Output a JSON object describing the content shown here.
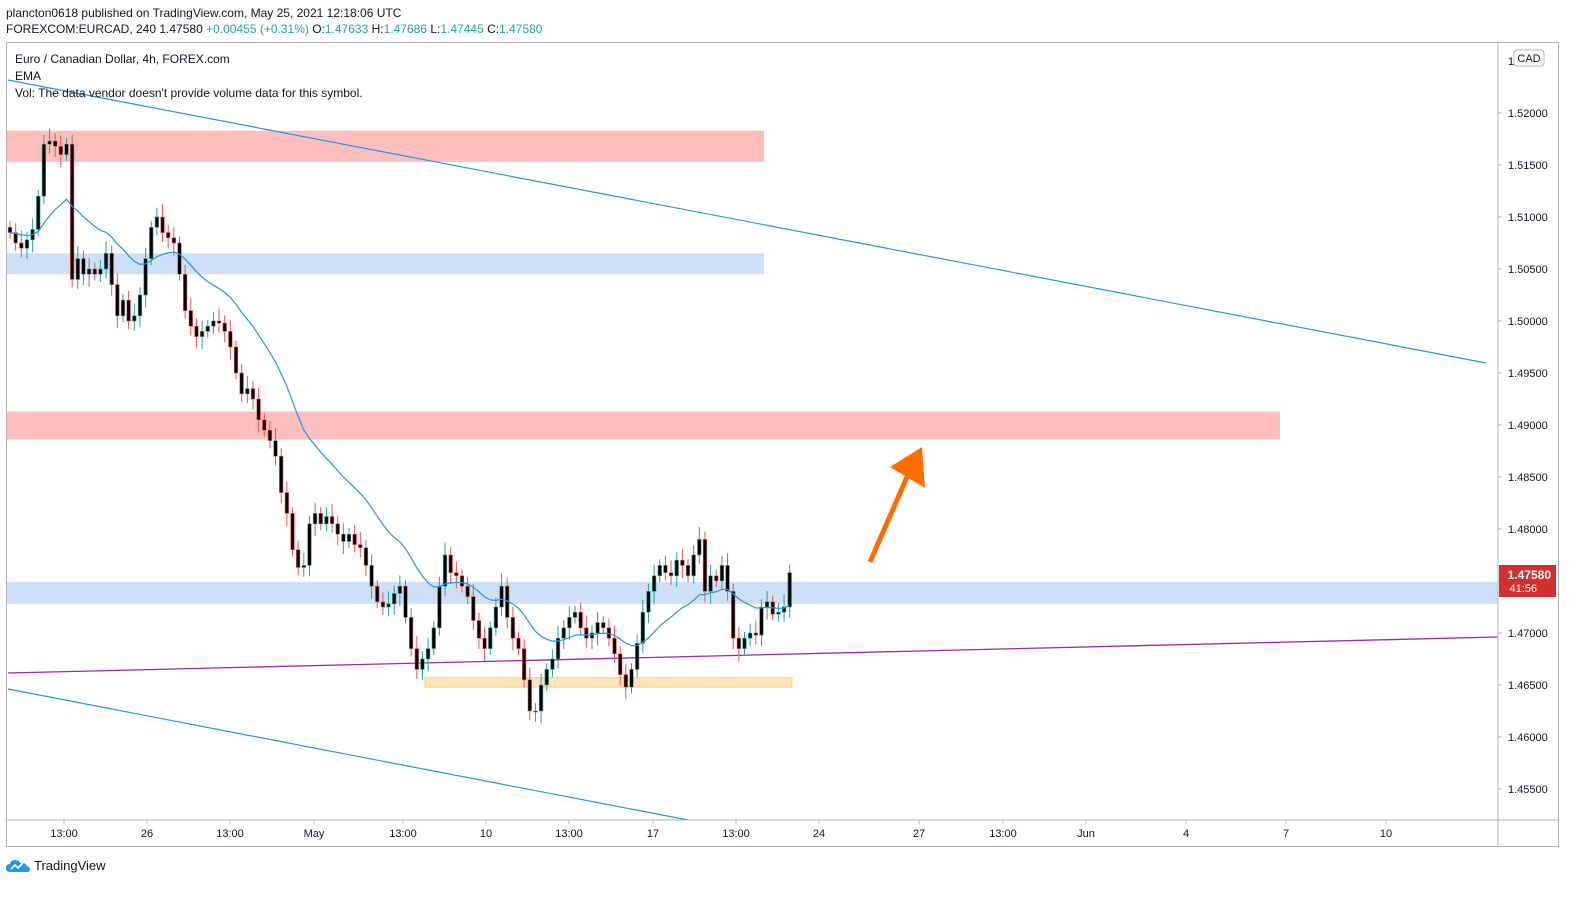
{
  "header": {
    "publisher_line": "plancton0618 published on TradingView.com, May 25, 2021 12:18:06 UTC",
    "symbol": "FOREXCOM:EURCAD, 240",
    "price": "1.47580",
    "change": "+0.00455 (+0.31%)",
    "o_label": "O:",
    "o_value": "1.47633",
    "h_label": "H:",
    "h_value": "1.47686",
    "l_label": "L:",
    "l_value": "1.47445",
    "c_label": "C:",
    "c_value": "1.47580"
  },
  "legend": {
    "title": "Euro / Canadian Dollar, 4h, FOREX.com",
    "ema": "EMA",
    "vol": "Vol: The data vendor doesn't provide volume data for this symbol."
  },
  "price_axis": {
    "currency": "CAD",
    "top_label": "1",
    "current_price": "1.47580",
    "countdown": "41:56"
  },
  "brand": {
    "name": "TradingView"
  },
  "colors": {
    "up": "#26a69a",
    "down": "#ef5350",
    "candle_body": "#000000",
    "ema": "#2196f3",
    "trendline": "#2196f3",
    "support_line": "#9c27b0",
    "supply_zone": "#ffb3b3",
    "demand_zone": "#c6d9f7",
    "base_zone": "#ffe0b2",
    "arrow": "#ff6d00"
  },
  "chart_data": {
    "type": "candlestick",
    "symbol": "FOREXCOM:EURCAD",
    "timeframe": "4h",
    "y_axis": {
      "ticks": [
        "1.52000",
        "1.51500",
        "1.51000",
        "1.50500",
        "1.50000",
        "1.49500",
        "1.49000",
        "1.48500",
        "1.48000",
        "1.47500",
        "1.47000",
        "1.46500",
        "1.46000",
        "1.45500"
      ],
      "range": [
        1.4525,
        1.5265
      ]
    },
    "x_axis": {
      "ticks": [
        "13:00",
        "26",
        "13:00",
        "May",
        "13:00",
        "10",
        "13:00",
        "17",
        "13:00",
        "24",
        "27",
        "13:00",
        "Jun",
        "4",
        "7",
        "10"
      ]
    },
    "zones": [
      {
        "kind": "supply",
        "from": 1.5153,
        "to": 1.5183
      },
      {
        "kind": "demand",
        "from": 1.5045,
        "to": 1.5065
      },
      {
        "kind": "supply",
        "from": 1.4886,
        "to": 1.4913
      },
      {
        "kind": "demand",
        "from": 1.4728,
        "to": 1.4749
      },
      {
        "kind": "base",
        "from": 1.4648,
        "to": 1.4657
      }
    ],
    "candles_close": [
      1.5085,
      1.5075,
      1.507,
      1.5078,
      1.5088,
      1.512,
      1.517,
      1.5173,
      1.5168,
      1.516,
      1.517,
      1.504,
      1.506,
      1.5045,
      1.505,
      1.5045,
      1.505,
      1.5065,
      1.5035,
      1.5005,
      1.502,
      1.5,
      1.5005,
      1.5025,
      1.506,
      1.509,
      1.51,
      1.5085,
      1.508,
      1.5075,
      1.5045,
      1.501,
      1.4995,
      1.4985,
      1.499,
      1.4995,
      1.5,
      1.4998,
      1.499,
      1.4975,
      1.495,
      1.493,
      1.4935,
      1.4925,
      1.4905,
      1.4895,
      1.4885,
      1.487,
      1.4835,
      1.4815,
      1.478,
      1.4763,
      1.4765,
      1.4805,
      1.4815,
      1.4805,
      1.4812,
      1.4805,
      1.4795,
      1.4788,
      1.4795,
      1.4785,
      1.4782,
      1.4765,
      1.4745,
      1.473,
      1.4725,
      1.4728,
      1.4738,
      1.4745,
      1.4715,
      1.4685,
      1.4665,
      1.4675,
      1.4685,
      1.4705,
      1.4745,
      1.4775,
      1.4758,
      1.4755,
      1.4745,
      1.4735,
      1.4712,
      1.4695,
      1.4685,
      1.4705,
      1.4725,
      1.4745,
      1.4715,
      1.4695,
      1.4685,
      1.4655,
      1.4625,
      1.4625,
      1.465,
      1.4665,
      1.4675,
      1.4695,
      1.4705,
      1.4715,
      1.472,
      1.4705,
      1.4695,
      1.47,
      1.471,
      1.4705,
      1.4695,
      1.468,
      1.466,
      1.4648,
      1.4665,
      1.469,
      1.472,
      1.474,
      1.4755,
      1.4765,
      1.4758,
      1.4755,
      1.477,
      1.4765,
      1.4755,
      1.4775,
      1.479,
      1.474,
      1.4755,
      1.475,
      1.4765,
      1.474,
      1.4695,
      1.4685,
      1.4695,
      1.47,
      1.4698,
      1.4725,
      1.473,
      1.4718,
      1.472,
      1.4725,
      1.4758
    ]
  }
}
